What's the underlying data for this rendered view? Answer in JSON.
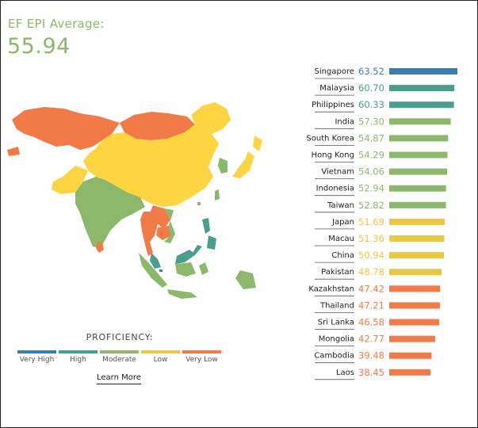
{
  "header": {
    "label": "EF EPI Average:",
    "value": "55.94"
  },
  "legend": {
    "title": "PROFICIENCY:",
    "items": [
      {
        "label": "Very High",
        "color": "#3b7dab"
      },
      {
        "label": "High",
        "color": "#4a9e8e"
      },
      {
        "label": "Moderate",
        "color": "#8cb86c"
      },
      {
        "label": "Low",
        "color": "#ecc840"
      },
      {
        "label": "Very Low",
        "color": "#f27a47"
      }
    ],
    "link": "Learn More"
  },
  "chart_data": {
    "type": "bar",
    "orientation": "horizontal",
    "categories": [
      "Singapore",
      "Malaysia",
      "Philippines",
      "India",
      "South Korea",
      "Hong Kong",
      "Vietnam",
      "Indonesia",
      "Taiwan",
      "Japan",
      "Macau",
      "China",
      "Pakistan",
      "Kazakhstan",
      "Thailand",
      "Sri Lanka",
      "Mongolia",
      "Cambodia",
      "Laos"
    ],
    "values": [
      63.52,
      60.7,
      60.33,
      57.3,
      54.87,
      54.29,
      54.06,
      52.94,
      52.82,
      51.69,
      51.36,
      50.94,
      48.78,
      47.42,
      47.21,
      46.58,
      42.77,
      39.48,
      38.45
    ],
    "proficiency": [
      "Very High",
      "High",
      "High",
      "Moderate",
      "Moderate",
      "Moderate",
      "Moderate",
      "Moderate",
      "Moderate",
      "Low",
      "Low",
      "Low",
      "Low",
      "Very Low",
      "Very Low",
      "Very Low",
      "Very Low",
      "Very Low",
      "Very Low"
    ],
    "title": "",
    "xlabel": "",
    "ylabel": "",
    "xlim": [
      0,
      63.52
    ],
    "grid": false
  }
}
